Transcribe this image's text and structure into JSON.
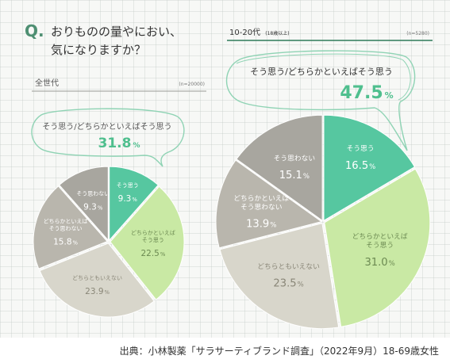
{
  "header": {
    "q_mark": "Q.",
    "question_line1": "おりものの量やにおい、",
    "question_line2": "気になりますか？"
  },
  "colors": {
    "accent": "#4e8f72",
    "mint": "#56c7a0",
    "lime": "#c9e9a4",
    "beige": "#d8d6cb",
    "taupe": "#b9b6ad",
    "gray": "#a8a69f",
    "highlight_text": "#4fbf8e"
  },
  "bubbles": {
    "all": {
      "label": "そう思う/どちらかといえばそう思う",
      "value": "31.8",
      "unit": "%"
    },
    "young": {
      "label": "そう思う/どちらかといえばそう思う",
      "value": "47.5",
      "unit": "%"
    }
  },
  "source": "出典：小林製薬「サラサーティブランド調査」（2022年9月）18-69歳女性",
  "chart_data": [
    {
      "type": "pie",
      "title": "全世代",
      "n_label": "(n=20000)",
      "categories": [
        "そう思う",
        "どちらかといえばそう思う",
        "どちらともいえない",
        "どちらかといえばそう思わない",
        "そう思わない"
      ],
      "display_labels": [
        [
          "そう思う"
        ],
        [
          "どちらかといえば",
          "そう思う"
        ],
        [
          "どちらともいえない"
        ],
        [
          "どちらかといえば",
          "そう思わない"
        ],
        [
          "そう思わない"
        ]
      ],
      "values": [
        9.3,
        22.5,
        23.9,
        15.8,
        9.3
      ],
      "value_labels": [
        "9.3",
        "22.5",
        "23.9",
        "15.8",
        "9.3"
      ],
      "unit": "%"
    },
    {
      "type": "pie",
      "title": "10-20代",
      "title_note": "(18歳以上)",
      "n_label": "(n=5280)",
      "categories": [
        "そう思う",
        "どちらかといえばそう思う",
        "どちらともいえない",
        "どちらかといえばそう思わない",
        "そう思わない"
      ],
      "display_labels": [
        [
          "そう思う"
        ],
        [
          "どちらかといえば",
          "そう思う"
        ],
        [
          "どちらともいえない"
        ],
        [
          "どちらかといえば",
          "そう思わない"
        ],
        [
          "そう思わない"
        ]
      ],
      "values": [
        16.5,
        31.0,
        23.5,
        13.9,
        15.1
      ],
      "value_labels": [
        "16.5",
        "31.0",
        "23.5",
        "13.9",
        "15.1"
      ],
      "unit": "%"
    }
  ]
}
